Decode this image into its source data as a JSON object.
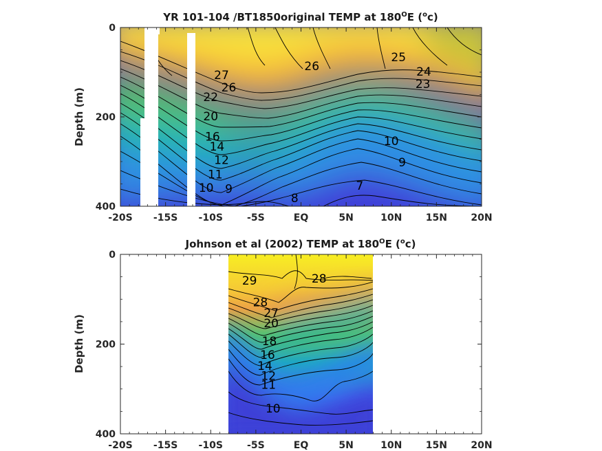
{
  "chart_data": [
    {
      "type": "contour",
      "title_main": "YR 101-104 /BT1850original TEMP at 180",
      "title_sup": "O",
      "title_after": "E (",
      "title_sup2": "o",
      "title_end": "c)",
      "ylabel": "Depth (m)",
      "xlabel": "",
      "x_ticks": [
        "-20S",
        "-15S",
        "-10S",
        "-5S",
        "EQ",
        "5N",
        "10N",
        "15N",
        "20N"
      ],
      "x_range": [
        -20,
        20
      ],
      "y_ticks": [
        "0",
        "200",
        "400"
      ],
      "y_range": [
        0,
        400
      ],
      "y_reversed": true,
      "masked_latitude_bands": [
        [
          -17.7,
          -17.0
        ],
        [
          -15.2,
          -14.9
        ],
        [
          -13.2,
          -12.8
        ]
      ],
      "contour_labels": [
        {
          "text": "27",
          "lat": -8.8,
          "depth": 108
        },
        {
          "text": "26",
          "lat": -8.0,
          "depth": 135
        },
        {
          "text": "26",
          "lat": 1.2,
          "depth": 88
        },
        {
          "text": "25",
          "lat": 10.8,
          "depth": 68
        },
        {
          "text": "24",
          "lat": 13.6,
          "depth": 100
        },
        {
          "text": "23",
          "lat": 13.5,
          "depth": 128
        },
        {
          "text": "22",
          "lat": -10.0,
          "depth": 157
        },
        {
          "text": "20",
          "lat": -10.0,
          "depth": 200
        },
        {
          "text": "16",
          "lat": -9.8,
          "depth": 245
        },
        {
          "text": "14",
          "lat": -9.3,
          "depth": 268
        },
        {
          "text": "12",
          "lat": -8.8,
          "depth": 298
        },
        {
          "text": "11",
          "lat": -9.5,
          "depth": 330
        },
        {
          "text": "10",
          "lat": -10.5,
          "depth": 360
        },
        {
          "text": "9",
          "lat": -8.0,
          "depth": 362
        },
        {
          "text": "8",
          "lat": -0.7,
          "depth": 383
        },
        {
          "text": "7",
          "lat": 6.5,
          "depth": 355
        },
        {
          "text": "10",
          "lat": 10.0,
          "depth": 255
        },
        {
          "text": "9",
          "lat": 11.2,
          "depth": 303
        }
      ]
    },
    {
      "type": "contour",
      "title_main": "Johnson et al (2002) TEMP at 180",
      "title_sup": "O",
      "title_after": "E (",
      "title_sup2": "o",
      "title_end": "c)",
      "ylabel": "Depth (m)",
      "xlabel": "",
      "x_ticks": [
        "-20S",
        "-15S",
        "-10S",
        "-5S",
        "EQ",
        "5N",
        "10N",
        "15N",
        "20N"
      ],
      "x_range": [
        -20,
        20
      ],
      "y_ticks": [
        "0",
        "200",
        "400"
      ],
      "y_range": [
        0,
        400
      ],
      "y_reversed": true,
      "data_lat_range": [
        -8,
        8
      ],
      "contour_labels": [
        {
          "text": "29",
          "lat": -5.7,
          "depth": 60
        },
        {
          "text": "28",
          "lat": 2.0,
          "depth": 55
        },
        {
          "text": "28",
          "lat": -4.5,
          "depth": 108
        },
        {
          "text": "27",
          "lat": -3.3,
          "depth": 132
        },
        {
          "text": "20",
          "lat": -3.3,
          "depth": 155
        },
        {
          "text": "18",
          "lat": -3.5,
          "depth": 195
        },
        {
          "text": "16",
          "lat": -3.7,
          "depth": 225
        },
        {
          "text": "14",
          "lat": -4.0,
          "depth": 250
        },
        {
          "text": "12",
          "lat": -3.6,
          "depth": 272
        },
        {
          "text": "11",
          "lat": -3.6,
          "depth": 292
        },
        {
          "text": "10",
          "lat": -3.1,
          "depth": 345
        }
      ]
    }
  ]
}
